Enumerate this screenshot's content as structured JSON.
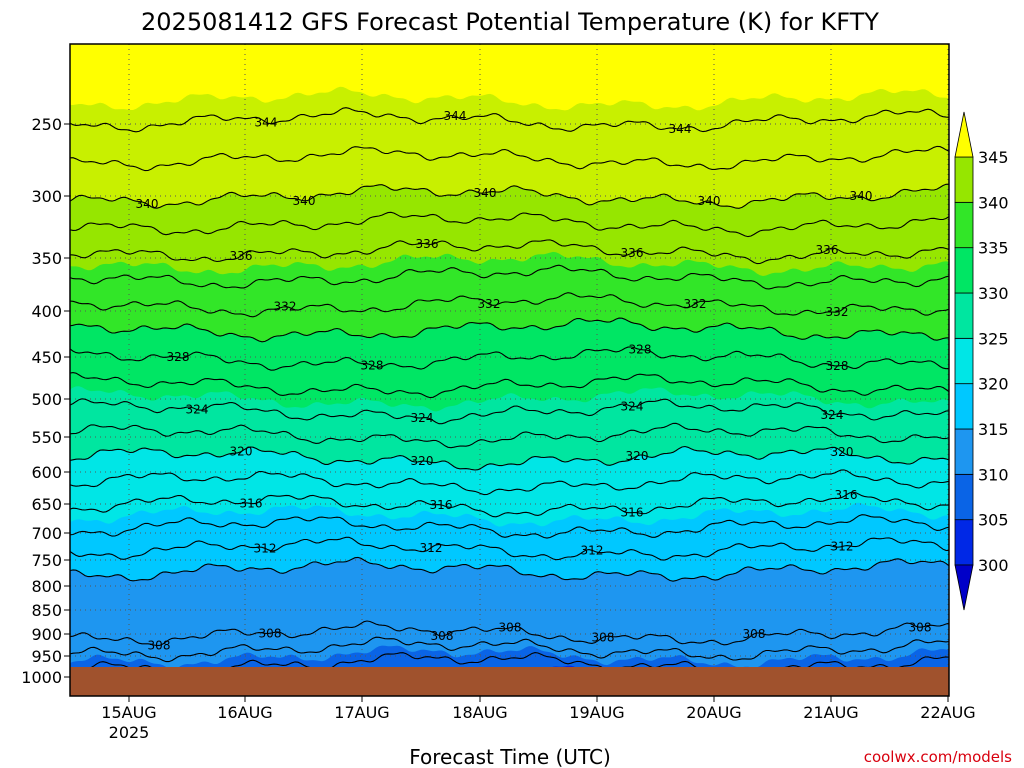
{
  "chart_data": {
    "type": "contour",
    "title": "2025081412 GFS Forecast Potential Temperature (K) for KFTY",
    "xlabel": "Forecast Time (UTC)",
    "ylabel": "",
    "x_ticks": [
      "15AUG",
      "16AUG",
      "17AUG",
      "18AUG",
      "19AUG",
      "20AUG",
      "21AUG",
      "22AUG"
    ],
    "x_tick_year": "2025",
    "x_range": [
      "2025-08-14 12Z",
      "2025-08-22 00Z"
    ],
    "y_axis": "pressure (hPa), reversed",
    "y_ticks": [
      250,
      300,
      350,
      400,
      450,
      500,
      550,
      600,
      650,
      700,
      750,
      800,
      850,
      900,
      950,
      1000
    ],
    "y_range": [
      1000,
      200
    ],
    "grid": true,
    "colorbar": {
      "levels": [
        300,
        305,
        310,
        315,
        320,
        325,
        330,
        335,
        340,
        345
      ],
      "labels": [
        "300",
        "305",
        "310",
        "315",
        "320",
        "325",
        "330",
        "335",
        "340",
        "345"
      ],
      "colors": [
        "#0000c8",
        "#0028e6",
        "#0a64e6",
        "#1e96f0",
        "#00c8ff",
        "#00e6e6",
        "#00e6a0",
        "#00e664",
        "#32e628",
        "#96e600",
        "#c8f000",
        "#ffff00"
      ],
      "extend": "both"
    },
    "contour_levels": [
      308,
      312,
      316,
      320,
      324,
      328,
      332,
      336,
      340,
      344
    ],
    "contour_labels": [
      {
        "text": "344"
      },
      {
        "text": "344"
      },
      {
        "text": "344"
      },
      {
        "text": "340"
      },
      {
        "text": "340"
      },
      {
        "text": "340"
      },
      {
        "text": "340"
      },
      {
        "text": "340"
      },
      {
        "text": "336"
      },
      {
        "text": "336"
      },
      {
        "text": "336"
      },
      {
        "text": "336"
      },
      {
        "text": "332"
      },
      {
        "text": "332"
      },
      {
        "text": "332"
      },
      {
        "text": "332"
      },
      {
        "text": "328"
      },
      {
        "text": "328"
      },
      {
        "text": "328"
      },
      {
        "text": "328"
      },
      {
        "text": "324"
      },
      {
        "text": "324"
      },
      {
        "text": "324"
      },
      {
        "text": "324"
      },
      {
        "text": "320"
      },
      {
        "text": "320"
      },
      {
        "text": "320"
      },
      {
        "text": "320"
      },
      {
        "text": "316"
      },
      {
        "text": "316"
      },
      {
        "text": "316"
      },
      {
        "text": "316"
      },
      {
        "text": "312"
      },
      {
        "text": "312"
      },
      {
        "text": "312"
      },
      {
        "text": "312"
      },
      {
        "text": "308"
      },
      {
        "text": "308"
      },
      {
        "text": "308"
      },
      {
        "text": "308"
      },
      {
        "text": "308"
      },
      {
        "text": "308"
      },
      {
        "text": "308"
      }
    ],
    "ground_color": "#a0522d",
    "credit": "coolwx.com/models"
  }
}
